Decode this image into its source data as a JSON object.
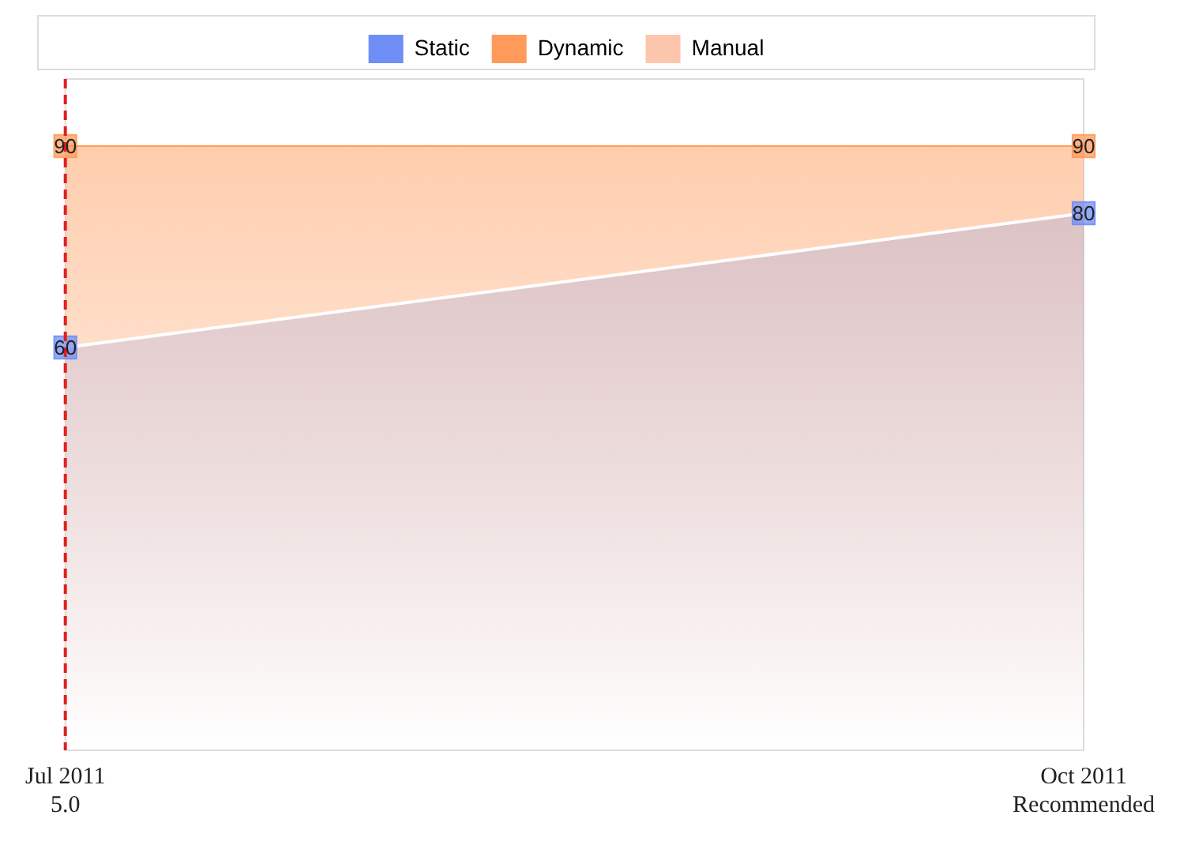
{
  "chart_data": {
    "type": "area",
    "categories": [
      "Jul 2011\n5.0",
      "Oct 2011\nRecommended"
    ],
    "series": [
      {
        "name": "Static",
        "color": "#6f8ef5",
        "values": [
          60,
          80
        ]
      },
      {
        "name": "Dynamic",
        "color": "#ff9a5a",
        "values": [
          90,
          90
        ]
      },
      {
        "name": "Manual",
        "color": "#fcc6ac",
        "values": [
          null,
          null
        ]
      }
    ],
    "ylim": [
      0,
      100
    ],
    "tick_labels": "x",
    "legend": "top",
    "grid": false,
    "marker": "square",
    "data_labels": true,
    "ref_lines": [
      {
        "axis": "x",
        "value": "Jul 2011\n5.0",
        "color": "#e02020",
        "line_style": "dashed"
      }
    ]
  }
}
